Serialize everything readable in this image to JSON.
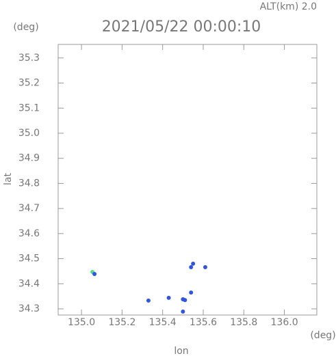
{
  "chart_data": {
    "type": "scatter",
    "title": "2021/05/22 00:00:10",
    "subtitle": "ALT(km) 2.0",
    "y_unit": "(deg)",
    "x_unit": "(deg)",
    "x_label": "lon",
    "y_label": "lat",
    "xlim": [
      134.885,
      136.16
    ],
    "ylim": [
      34.2755,
      35.354
    ],
    "xticks": [
      {
        "value": 135.0,
        "label": "135.0"
      },
      135.2,
      135.4,
      135.6,
      135.8,
      {
        "value": 136.0,
        "label": "136.0"
      }
    ],
    "yticks": [
      34.3,
      34.4,
      34.5,
      34.6,
      34.7,
      34.8,
      34.9,
      {
        "value": 35.0,
        "label": "35.0"
      },
      35.1,
      35.2,
      35.3
    ],
    "x": [
      135.054,
      135.064,
      135.33,
      135.43,
      135.5,
      135.51,
      135.5,
      135.54,
      135.55,
      135.54,
      135.61
    ],
    "values": [
      34.447,
      34.439,
      34.333,
      34.344,
      34.338,
      34.335,
      34.289,
      34.365,
      34.48,
      34.466,
      34.466
    ],
    "colors": [
      "#55dd88",
      "#3355dd",
      "#3355dd",
      "#3355dd",
      "#3355dd",
      "#3355dd",
      "#3355dd",
      "#3355dd",
      "#3355dd",
      "#3355dd",
      "#3355dd"
    ]
  }
}
